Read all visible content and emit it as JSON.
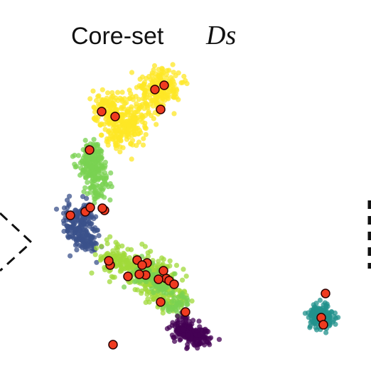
{
  "chart_data": {
    "type": "scatter",
    "title": "Core-set",
    "title_variable": "Ds",
    "xlabel": "",
    "ylabel": "",
    "axes_visible": false,
    "grid": false,
    "legend": "none",
    "colors": {
      "yellow": "#fde725",
      "light_green": "#7ad151",
      "dark_blue": "#3b528b",
      "yellow_green": "#a0da39",
      "purple": "#440154",
      "teal": "#21918c",
      "core_fill": "#f03b20",
      "core_edge": "#2b0000",
      "dashed": "#111111"
    },
    "clusters": [
      {
        "color": "yellow",
        "count": 520,
        "centers": [
          [
            185,
            170
          ],
          [
            215,
            135
          ],
          [
            155,
            150
          ],
          [
            230,
            120
          ],
          [
            170,
            185
          ]
        ],
        "spread": 13
      },
      {
        "color": "light_green",
        "count": 240,
        "centers": [
          [
            130,
            215
          ],
          [
            135,
            245
          ],
          [
            140,
            270
          ],
          [
            125,
            230
          ]
        ],
        "spread": 9
      },
      {
        "color": "dark_blue",
        "count": 230,
        "centers": [
          [
            105,
            310
          ],
          [
            115,
            300
          ],
          [
            110,
            330
          ],
          [
            125,
            340
          ]
        ],
        "spread": 9
      },
      {
        "color": "yellow_green",
        "count": 420,
        "centers": [
          [
            160,
            365
          ],
          [
            195,
            375
          ],
          [
            225,
            395
          ],
          [
            240,
            415
          ],
          [
            210,
            390
          ]
        ],
        "spread": 12
      },
      {
        "color": "light_green",
        "count": 140,
        "centers": [
          [
            205,
            385
          ],
          [
            230,
            400
          ],
          [
            250,
            430
          ]
        ],
        "spread": 9
      },
      {
        "color": "purple",
        "count": 190,
        "centers": [
          [
            265,
            468
          ],
          [
            280,
            475
          ],
          [
            255,
            460
          ]
        ],
        "spread": 8
      },
      {
        "color": "teal",
        "count": 170,
        "centers": [
          [
            450,
            440
          ],
          [
            458,
            450
          ],
          [
            445,
            445
          ]
        ],
        "spread": 8
      }
    ],
    "core_points": [
      [
        218,
        126
      ],
      [
        231,
        120
      ],
      [
        143,
        157
      ],
      [
        162,
        164
      ],
      [
        226,
        154
      ],
      [
        126,
        211
      ],
      [
        99,
        303
      ],
      [
        120,
        298
      ],
      [
        127,
        292
      ],
      [
        147,
        296
      ],
      [
        144,
        293
      ],
      [
        193,
        366
      ],
      [
        207,
        370
      ],
      [
        200,
        373
      ],
      [
        180,
        389
      ],
      [
        205,
        387
      ],
      [
        196,
        386
      ],
      [
        230,
        381
      ],
      [
        234,
        392
      ],
      [
        223,
        393
      ],
      [
        238,
        395
      ],
      [
        245,
        400
      ],
      [
        155,
        373
      ],
      [
        153,
        367
      ],
      [
        226,
        425
      ],
      [
        261,
        439
      ],
      [
        458,
        413
      ],
      [
        452,
        447
      ],
      [
        455,
        457
      ],
      [
        159,
        485
      ]
    ]
  }
}
